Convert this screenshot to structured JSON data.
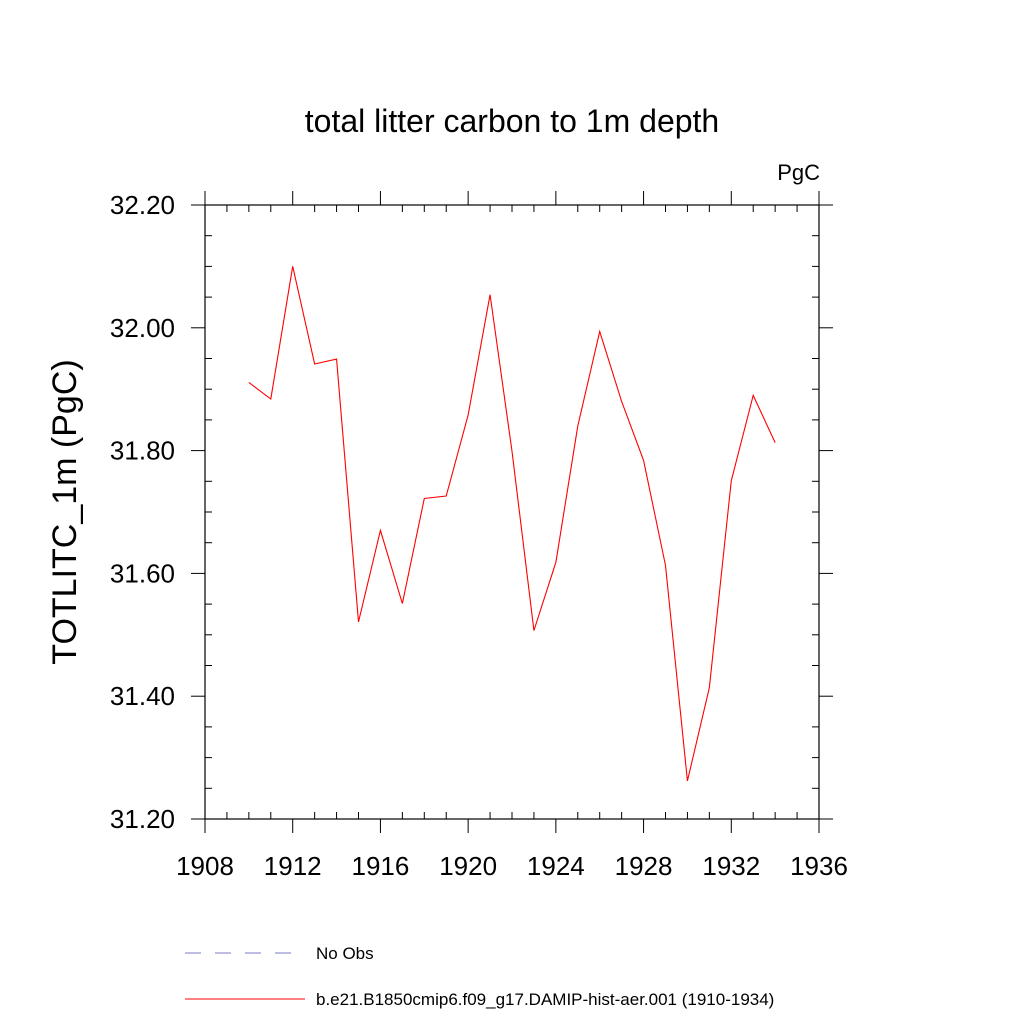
{
  "chart_data": {
    "type": "line",
    "title": "total litter carbon to 1m depth",
    "units": "PgC",
    "xlabel": "",
    "ylabel": "TOTLITC_1m  (PgC)",
    "xlim": [
      1908,
      1936
    ],
    "ylim": [
      31.2,
      32.2
    ],
    "x_ticks": [
      1908,
      1912,
      1916,
      1920,
      1924,
      1928,
      1932,
      1936
    ],
    "x_tick_labels": [
      "1908",
      "1912",
      "1916",
      "1920",
      "1924",
      "1928",
      "1932",
      "1936"
    ],
    "y_ticks": [
      31.2,
      31.4,
      31.6,
      31.8,
      32.0,
      32.2
    ],
    "y_tick_labels": [
      "31.20",
      "31.40",
      "31.60",
      "31.80",
      "32.00",
      "32.20"
    ],
    "grid": false,
    "legend_position": "bottom",
    "legend": [
      {
        "label": "No Obs",
        "color": "#7d7dc8",
        "style": "dashed"
      },
      {
        "label": "b.e21.B1850cmip6.f09_g17.DAMIP-hist-aer.001 (1910-1934)",
        "color": "#ff0000",
        "style": "solid"
      }
    ],
    "series": [
      {
        "name": "b.e21.B1850cmip6.f09_g17.DAMIP-hist-aer.001 (1910-1934)",
        "color": "#ff0000",
        "x": [
          1910,
          1911,
          1912,
          1913,
          1914,
          1915,
          1916,
          1917,
          1918,
          1919,
          1920,
          1921,
          1922,
          1923,
          1924,
          1925,
          1926,
          1927,
          1928,
          1929,
          1930,
          1931,
          1932,
          1933,
          1934
        ],
        "y": [
          31.911,
          31.884,
          32.1,
          31.941,
          31.949,
          31.521,
          31.67,
          31.551,
          31.722,
          31.726,
          31.858,
          32.054,
          31.799,
          31.507,
          31.618,
          31.84,
          31.994,
          31.88,
          31.784,
          31.613,
          31.262,
          31.414,
          31.751,
          31.89,
          31.813
        ]
      }
    ]
  }
}
